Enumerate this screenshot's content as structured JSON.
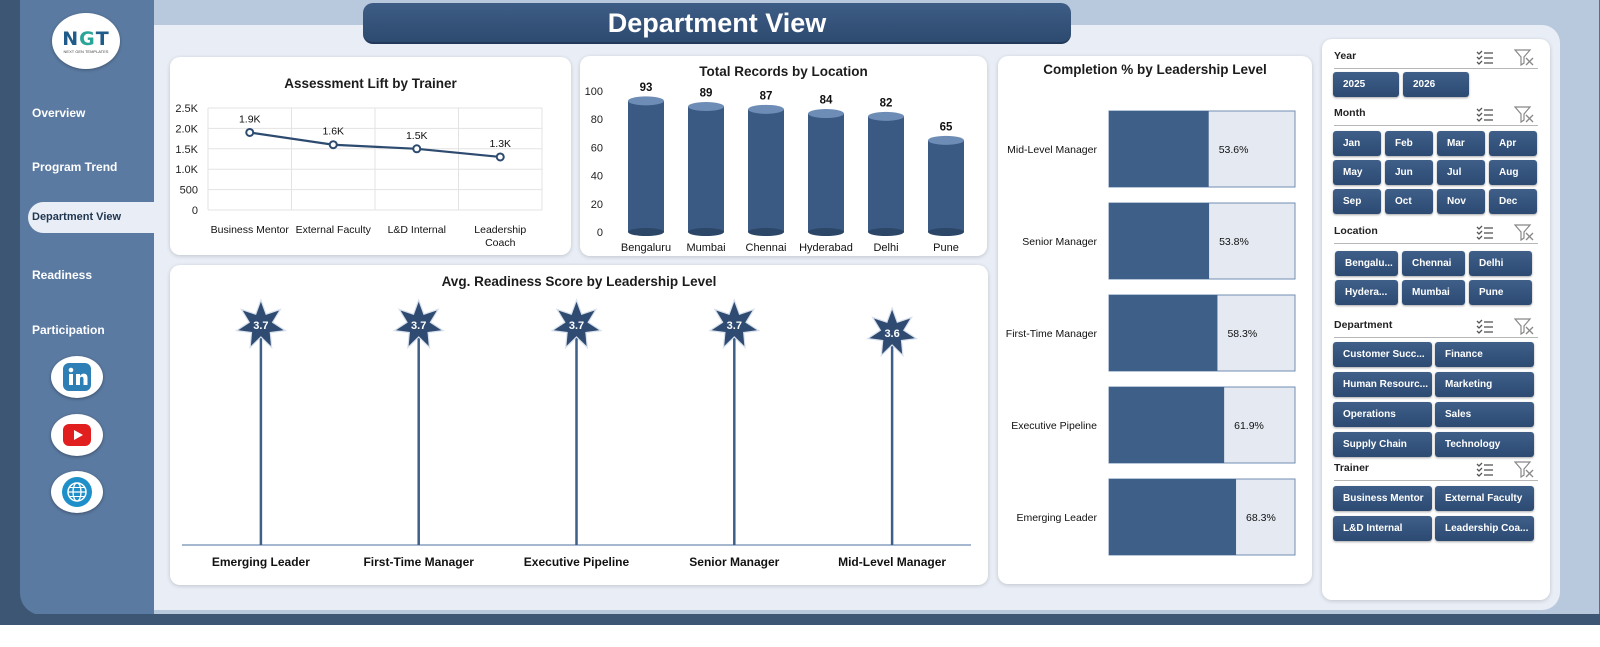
{
  "page": {
    "title": "Department View"
  },
  "brand": {
    "logo_text": "NGT",
    "logo_sub": "NEXT GEN TEMPLATES"
  },
  "nav": [
    {
      "label": "Overview"
    },
    {
      "label": "Program Trend"
    },
    {
      "label": "Department View",
      "active": true
    },
    {
      "label": "Readiness"
    },
    {
      "label": "Participation"
    }
  ],
  "social": [
    {
      "icon": "linkedin-icon",
      "label": "in"
    },
    {
      "icon": "youtube-icon"
    },
    {
      "icon": "globe-icon"
    }
  ],
  "colors": {
    "navy": "#2d4a6f",
    "bar": "#3e5f88",
    "light": "#e4e9f2",
    "panel": "#5b7aa1"
  },
  "chart_data": [
    {
      "id": "assessment",
      "type": "line",
      "title": "Assessment  Lift by Trainer",
      "categories": [
        "Business Mentor",
        "External Faculty",
        "L&D Internal",
        "Leadership Coach"
      ],
      "values": [
        1900,
        1600,
        1500,
        1300
      ],
      "data_labels": [
        "1.9K",
        "1.6K",
        "1.5K",
        "1.3K"
      ],
      "y_ticks": [
        "2.5K",
        "2.0K",
        "1.5K",
        "1.0K",
        "500",
        "0"
      ],
      "ylim": [
        0,
        2500
      ]
    },
    {
      "id": "location",
      "type": "bar",
      "title": "Total Records by Location",
      "categories": [
        "Bengaluru",
        "Mumbai",
        "Chennai",
        "Hyderabad",
        "Delhi",
        "Pune"
      ],
      "values": [
        93,
        89,
        87,
        84,
        82,
        65
      ],
      "y_ticks": [
        "100",
        "80",
        "60",
        "40",
        "20",
        "0"
      ],
      "ylim": [
        0,
        100
      ]
    },
    {
      "id": "completion",
      "type": "bar",
      "orientation": "horizontal",
      "title": "Completion % by Leadership Level",
      "categories": [
        "Mid-Level Manager",
        "Senior Manager",
        "First-Time Manager",
        "Executive Pipeline",
        "Emerging Leader"
      ],
      "values": [
        53.6,
        53.8,
        58.3,
        61.9,
        68.3
      ],
      "data_labels": [
        "53.6%",
        "53.8%",
        "58.3%",
        "61.9%",
        "68.3%"
      ],
      "xlim": [
        0,
        100
      ]
    },
    {
      "id": "readiness",
      "type": "scatter",
      "title": "Avg. Readiness Score by Leadership Level",
      "categories": [
        "Emerging Leader",
        "First-Time Manager",
        "Executive Pipeline",
        "Senior Manager",
        "Mid-Level Manager"
      ],
      "values": [
        3.7,
        3.7,
        3.7,
        3.7,
        3.6
      ],
      "data_labels": [
        "3.7",
        "3.7",
        "3.7",
        "3.7",
        "3.6"
      ]
    }
  ],
  "slicers": [
    {
      "label": "Year",
      "items": [
        "2025",
        "2026"
      ]
    },
    {
      "label": "Month",
      "items": [
        "Jan",
        "Feb",
        "Mar",
        "Apr",
        "May",
        "Jun",
        "Jul",
        "Aug",
        "Sep",
        "Oct",
        "Nov",
        "Dec"
      ]
    },
    {
      "label": "Location",
      "items": [
        "Bengalu...",
        "Chennai",
        "Delhi",
        "Hydera...",
        "Mumbai",
        "Pune"
      ]
    },
    {
      "label": "Department",
      "items": [
        "Customer Succ...",
        "Finance",
        "Human Resourc...",
        "Marketing",
        "Operations",
        "Sales",
        "Supply Chain",
        "Technology"
      ]
    },
    {
      "label": "Trainer",
      "items": [
        "Business Mentor",
        "External Faculty",
        "L&D Internal",
        "Leadership Coa..."
      ]
    }
  ]
}
